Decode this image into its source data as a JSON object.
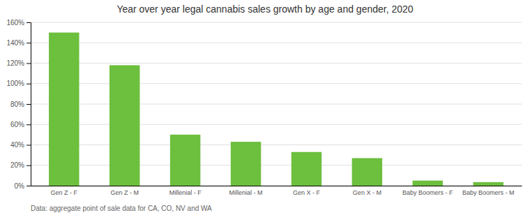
{
  "chart_data": {
    "type": "bar",
    "title": "Year over year legal cannabis sales growth by age and gender, 2020",
    "categories": [
      "Gen Z - F",
      "Gen Z - M",
      "Millenial - F",
      "Millenial - M",
      "Gen X - F",
      "Gen X - M",
      "Baby Boomers - F",
      "Baby Boomers - M"
    ],
    "values": [
      1.5,
      1.18,
      0.5,
      0.43,
      0.33,
      0.27,
      0.05,
      0.035
    ],
    "color": "#6DBF3E",
    "ylim": [
      0,
      1.6
    ],
    "yticks": [
      {
        "value": 0.0,
        "label": "0%"
      },
      {
        "value": 0.2,
        "label": "20%"
      },
      {
        "value": 0.4,
        "label": "40%"
      },
      {
        "value": 0.6,
        "label": "60%"
      },
      {
        "value": 0.8,
        "label": "80%"
      },
      {
        "value": 1.0,
        "label": "100%"
      },
      {
        "value": 1.2,
        "label": "120%"
      },
      {
        "value": 1.4,
        "label": "140%"
      },
      {
        "value": 1.6,
        "label": "160%"
      }
    ],
    "grid": true,
    "footnote": "Data: aggregate point of sale data for CA, CO, NV and WA"
  }
}
